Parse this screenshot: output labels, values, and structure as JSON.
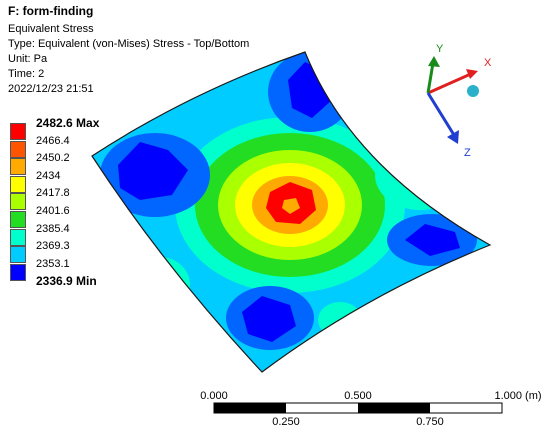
{
  "header": {
    "title": "F: form-finding",
    "result_name": "Equivalent Stress",
    "type_line": "Type: Equivalent (von-Mises) Stress - Top/Bottom",
    "unit_line": "Unit: Pa",
    "time_line": "Time: 2",
    "datetime": "2022/12/23 21:51"
  },
  "legend": {
    "levels": [
      {
        "label": "2482.6 Max",
        "color": "#ff0000",
        "emphasis": true
      },
      {
        "label": "2466.4",
        "color": "#ff5500",
        "emphasis": false
      },
      {
        "label": "2450.2",
        "color": "#ffaa00",
        "emphasis": false
      },
      {
        "label": "2434",
        "color": "#ffff00",
        "emphasis": false
      },
      {
        "label": "2417.8",
        "color": "#aaff00",
        "emphasis": false
      },
      {
        "label": "2401.6",
        "color": "#22dd22",
        "emphasis": false
      },
      {
        "label": "2385.4",
        "color": "#00ffcc",
        "emphasis": false
      },
      {
        "label": "2369.3",
        "color": "#00ccff",
        "emphasis": false
      },
      {
        "label": "2353.1",
        "color": "#0066ff",
        "emphasis": false
      },
      {
        "label": "2336.9 Min",
        "color": "#0000ff",
        "emphasis": true
      }
    ]
  },
  "triad": {
    "x_label": "X",
    "y_label": "Y",
    "z_label": "Z",
    "x_color": "#e02020",
    "y_color": "#1a8a1a",
    "z_color": "#1f3fd0",
    "center_color": "#2ab0c8"
  },
  "scale_bar": {
    "top_labels": [
      "0.000",
      "0.500",
      "1.000 (m)"
    ],
    "bottom_labels": [
      "0.250",
      "0.750"
    ]
  },
  "contour_palette": {
    "c0": "#0000ff",
    "c1": "#0066ff",
    "c2": "#00ccff",
    "c3": "#00ffcc",
    "c4": "#22dd22",
    "c5": "#aaff00",
    "c6": "#ffff00",
    "c7": "#ffaa00",
    "c8": "#ff0000"
  }
}
